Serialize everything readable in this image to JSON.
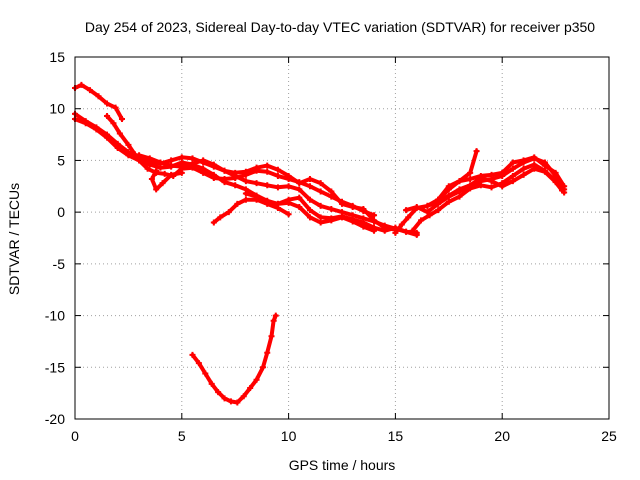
{
  "chart_data": {
    "type": "scatter",
    "title": "Day 254 of 2023, Sidereal Day-to-day VTEC variation (SDTVAR) for receiver p350",
    "xlabel": "GPS time / hours",
    "ylabel": "SDTVAR / TECUs",
    "xlim": [
      0,
      25
    ],
    "ylim": [
      -20,
      15
    ],
    "xticks": [
      0,
      5,
      10,
      15,
      20,
      25
    ],
    "yticks": [
      -20,
      -15,
      -10,
      -5,
      0,
      5,
      10,
      15
    ],
    "grid": true,
    "color": "#ff0000",
    "series": [
      {
        "name": "track-1",
        "points": [
          [
            0.0,
            12.0
          ],
          [
            0.3,
            12.3
          ],
          [
            0.7,
            11.8
          ],
          [
            1.1,
            11.2
          ],
          [
            1.5,
            10.5
          ],
          [
            1.9,
            10.1
          ],
          [
            2.2,
            9.0
          ]
        ]
      },
      {
        "name": "track-2",
        "points": [
          [
            0.0,
            9.5
          ],
          [
            0.5,
            8.8
          ],
          [
            1.0,
            8.2
          ],
          [
            1.5,
            7.5
          ],
          [
            2.0,
            6.6
          ],
          [
            2.5,
            5.8
          ],
          [
            3.0,
            5.2
          ],
          [
            3.5,
            4.9
          ],
          [
            4.0,
            4.7
          ],
          [
            4.5,
            5.0
          ],
          [
            5.0,
            5.3
          ],
          [
            5.5,
            5.2
          ],
          [
            6.0,
            4.8
          ],
          [
            6.5,
            4.4
          ],
          [
            7.0,
            4.0
          ],
          [
            7.5,
            3.5
          ],
          [
            8.0,
            3.0
          ],
          [
            8.5,
            2.8
          ],
          [
            9.0,
            2.6
          ],
          [
            9.5,
            2.4
          ],
          [
            10.0,
            2.5
          ],
          [
            10.5,
            2.2
          ],
          [
            11.0,
            1.2
          ],
          [
            11.5,
            0.6
          ],
          [
            12.0,
            0.3
          ],
          [
            12.5,
            0.0
          ],
          [
            13.0,
            -0.3
          ],
          [
            13.5,
            -0.6
          ],
          [
            14.0,
            -0.9
          ],
          [
            14.5,
            -1.3
          ],
          [
            15.0,
            -1.6
          ],
          [
            15.5,
            -1.9
          ],
          [
            16.0,
            -2.0
          ]
        ]
      },
      {
        "name": "track-3",
        "points": [
          [
            0.0,
            9.0
          ],
          [
            0.5,
            8.6
          ],
          [
            1.0,
            8.0
          ],
          [
            1.5,
            7.2
          ],
          [
            2.0,
            6.2
          ],
          [
            2.5,
            5.5
          ],
          [
            3.0,
            5.0
          ],
          [
            3.5,
            4.6
          ],
          [
            4.0,
            4.3
          ],
          [
            4.5,
            4.4
          ],
          [
            5.0,
            4.8
          ],
          [
            5.5,
            4.6
          ],
          [
            6.0,
            4.2
          ],
          [
            6.5,
            3.6
          ],
          [
            7.0,
            2.9
          ],
          [
            7.5,
            2.6
          ],
          [
            8.0,
            2.2
          ],
          [
            8.5,
            1.6
          ],
          [
            9.0,
            1.1
          ],
          [
            9.5,
            0.8
          ],
          [
            10.0,
            1.2
          ],
          [
            10.5,
            1.4
          ],
          [
            11.0,
            0.2
          ],
          [
            11.5,
            -0.5
          ],
          [
            12.0,
            -0.6
          ],
          [
            12.5,
            -0.4
          ],
          [
            13.0,
            -0.7
          ],
          [
            13.5,
            -1.0
          ],
          [
            14.0,
            -1.5
          ],
          [
            14.5,
            -1.8
          ],
          [
            15.0,
            -1.5
          ],
          [
            15.5,
            -1.9
          ],
          [
            16.0,
            -2.2
          ]
        ]
      },
      {
        "name": "track-4",
        "points": [
          [
            1.5,
            9.3
          ],
          [
            1.8,
            8.6
          ],
          [
            2.1,
            7.6
          ],
          [
            2.5,
            6.5
          ],
          [
            2.8,
            5.6
          ],
          [
            3.0,
            5.0
          ],
          [
            3.4,
            4.2
          ],
          [
            3.8,
            3.8
          ],
          [
            4.2,
            3.7
          ],
          [
            4.6,
            3.5
          ],
          [
            5.0,
            4.2
          ],
          [
            5.5,
            4.3
          ],
          [
            6.0,
            3.8
          ],
          [
            6.5,
            3.3
          ],
          [
            7.0,
            3.2
          ],
          [
            7.5,
            3.3
          ],
          [
            8.0,
            3.6
          ],
          [
            8.5,
            4.0
          ],
          [
            9.0,
            3.9
          ],
          [
            9.5,
            3.5
          ],
          [
            10.0,
            3.2
          ],
          [
            10.5,
            2.9
          ],
          [
            11.0,
            2.5
          ],
          [
            11.5,
            2.0
          ],
          [
            12.0,
            1.5
          ],
          [
            12.5,
            1.0
          ],
          [
            13.0,
            0.6
          ],
          [
            13.5,
            0.1
          ],
          [
            14.0,
            -0.3
          ]
        ]
      },
      {
        "name": "track-5",
        "points": [
          [
            3.0,
            5.5
          ],
          [
            3.5,
            5.2
          ],
          [
            4.0,
            4.8
          ],
          [
            4.5,
            4.5
          ],
          [
            5.0,
            4.4
          ],
          [
            5.5,
            4.7
          ],
          [
            6.0,
            5.0
          ],
          [
            6.5,
            4.6
          ],
          [
            7.0,
            4.0
          ],
          [
            7.5,
            3.8
          ],
          [
            8.0,
            3.9
          ],
          [
            8.5,
            4.3
          ],
          [
            9.0,
            4.5
          ],
          [
            9.5,
            4.1
          ],
          [
            10.0,
            3.5
          ],
          [
            10.5,
            2.8
          ],
          [
            11.0,
            3.2
          ],
          [
            11.5,
            2.8
          ],
          [
            12.0,
            2.0
          ],
          [
            12.5,
            0.8
          ],
          [
            13.0,
            0.5
          ],
          [
            13.5,
            0.3
          ],
          [
            14.0,
            -0.8
          ],
          [
            14.5,
            -1.5
          ],
          [
            15.0,
            -1.7
          ]
        ]
      },
      {
        "name": "track-6",
        "points": [
          [
            3.8,
            4.0
          ],
          [
            3.6,
            3.2
          ],
          [
            3.8,
            2.2
          ],
          [
            4.1,
            2.8
          ],
          [
            4.5,
            3.6
          ],
          [
            5.0,
            3.8
          ]
        ]
      },
      {
        "name": "track-7",
        "points": [
          [
            6.5,
            -1.0
          ],
          [
            6.8,
            -0.5
          ],
          [
            7.2,
            0.0
          ],
          [
            7.6,
            0.8
          ],
          [
            8.0,
            1.2
          ],
          [
            8.5,
            1.2
          ],
          [
            9.0,
            0.8
          ],
          [
            9.5,
            0.4
          ],
          [
            10.0,
            -0.2
          ]
        ]
      },
      {
        "name": "track-8",
        "points": [
          [
            8.0,
            1.8
          ],
          [
            8.5,
            1.5
          ],
          [
            9.0,
            1.0
          ],
          [
            9.5,
            0.8
          ],
          [
            10.0,
            0.9
          ],
          [
            10.5,
            0.5
          ],
          [
            11.0,
            -0.5
          ],
          [
            11.5,
            -1.0
          ],
          [
            12.0,
            -0.8
          ],
          [
            12.5,
            -0.5
          ],
          [
            13.0,
            -0.9
          ],
          [
            13.5,
            -1.4
          ],
          [
            14.0,
            -1.8
          ]
        ]
      },
      {
        "name": "track-9",
        "points": [
          [
            5.5,
            -13.8
          ],
          [
            5.8,
            -14.6
          ],
          [
            6.1,
            -15.6
          ],
          [
            6.4,
            -16.6
          ],
          [
            6.7,
            -17.4
          ],
          [
            7.0,
            -18.0
          ],
          [
            7.3,
            -18.3
          ],
          [
            7.6,
            -18.4
          ],
          [
            7.9,
            -17.8
          ],
          [
            8.2,
            -17.0
          ],
          [
            8.5,
            -16.2
          ],
          [
            8.8,
            -15.0
          ],
          [
            9.0,
            -13.6
          ],
          [
            9.2,
            -12.0
          ],
          [
            9.3,
            -10.5
          ],
          [
            9.4,
            -10.0
          ]
        ]
      },
      {
        "name": "track-10",
        "points": [
          [
            15.0,
            -2.0
          ],
          [
            15.3,
            -1.2
          ],
          [
            15.6,
            -0.5
          ],
          [
            16.0,
            0.4
          ],
          [
            16.5,
            0.6
          ],
          [
            17.0,
            1.2
          ],
          [
            17.5,
            2.2
          ],
          [
            18.0,
            3.0
          ],
          [
            18.5,
            3.8
          ],
          [
            18.8,
            5.9
          ]
        ]
      },
      {
        "name": "track-11",
        "points": [
          [
            15.5,
            0.2
          ],
          [
            16.0,
            0.5
          ],
          [
            16.5,
            0.0
          ],
          [
            17.0,
            0.8
          ],
          [
            17.5,
            1.5
          ],
          [
            18.0,
            2.0
          ],
          [
            18.5,
            2.5
          ],
          [
            19.0,
            3.0
          ],
          [
            19.5,
            3.2
          ],
          [
            20.0,
            3.5
          ],
          [
            20.5,
            4.2
          ],
          [
            21.0,
            4.8
          ],
          [
            21.5,
            5.2
          ],
          [
            22.0,
            4.8
          ],
          [
            22.5,
            3.5
          ],
          [
            22.9,
            2.2
          ]
        ]
      },
      {
        "name": "track-12",
        "points": [
          [
            15.8,
            -1.8
          ],
          [
            16.2,
            -0.8
          ],
          [
            16.6,
            -0.3
          ],
          [
            17.0,
            0.2
          ],
          [
            17.5,
            1.0
          ],
          [
            18.0,
            1.5
          ],
          [
            18.5,
            2.3
          ],
          [
            19.0,
            2.6
          ],
          [
            19.5,
            2.4
          ],
          [
            20.0,
            2.8
          ],
          [
            20.5,
            3.5
          ],
          [
            21.0,
            4.2
          ],
          [
            21.5,
            4.6
          ],
          [
            22.0,
            4.0
          ],
          [
            22.5,
            3.0
          ],
          [
            22.9,
            1.9
          ]
        ]
      },
      {
        "name": "track-13",
        "points": [
          [
            16.5,
            0.6
          ],
          [
            17.0,
            1.0
          ],
          [
            17.5,
            1.6
          ],
          [
            18.0,
            2.2
          ],
          [
            18.5,
            2.6
          ],
          [
            19.0,
            3.3
          ],
          [
            19.5,
            3.0
          ],
          [
            20.0,
            2.5
          ],
          [
            20.5,
            3.0
          ],
          [
            21.0,
            3.6
          ],
          [
            21.5,
            4.2
          ],
          [
            22.0,
            3.9
          ],
          [
            22.5,
            2.9
          ],
          [
            22.8,
            2.1
          ]
        ]
      },
      {
        "name": "track-14",
        "points": [
          [
            17.0,
            1.2
          ],
          [
            17.5,
            2.5
          ],
          [
            18.0,
            3.0
          ],
          [
            18.5,
            3.2
          ],
          [
            19.0,
            3.5
          ],
          [
            19.5,
            3.6
          ],
          [
            20.0,
            3.8
          ],
          [
            20.5,
            4.8
          ],
          [
            21.0,
            5.0
          ],
          [
            21.5,
            5.3
          ],
          [
            22.0,
            4.5
          ],
          [
            22.5,
            3.8
          ],
          [
            22.9,
            2.5
          ]
        ]
      }
    ]
  }
}
